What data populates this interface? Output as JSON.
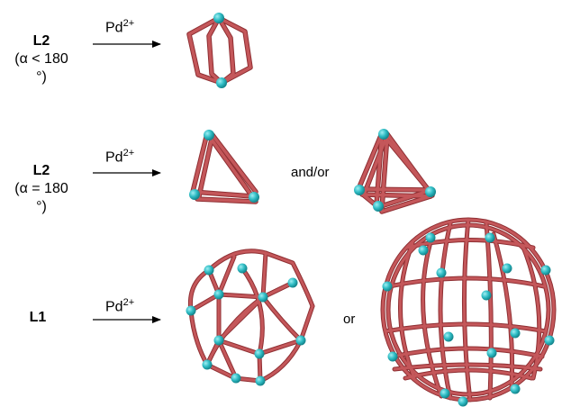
{
  "row1": {
    "ligand": "L2",
    "condition": "(α < 180 °)",
    "reagent": "Pd",
    "charge": "2+"
  },
  "row2": {
    "ligand": "L2",
    "condition": "(α = 180 °)",
    "reagent": "Pd",
    "charge": "2+",
    "connector": "and/or"
  },
  "row3": {
    "ligand": "L1",
    "reagent": "Pd",
    "charge": "2+",
    "connector": "or"
  },
  "colors": {
    "strut": "#b84a4c",
    "strut_dark": "#8f2f33",
    "node": "#2fbcc4"
  }
}
